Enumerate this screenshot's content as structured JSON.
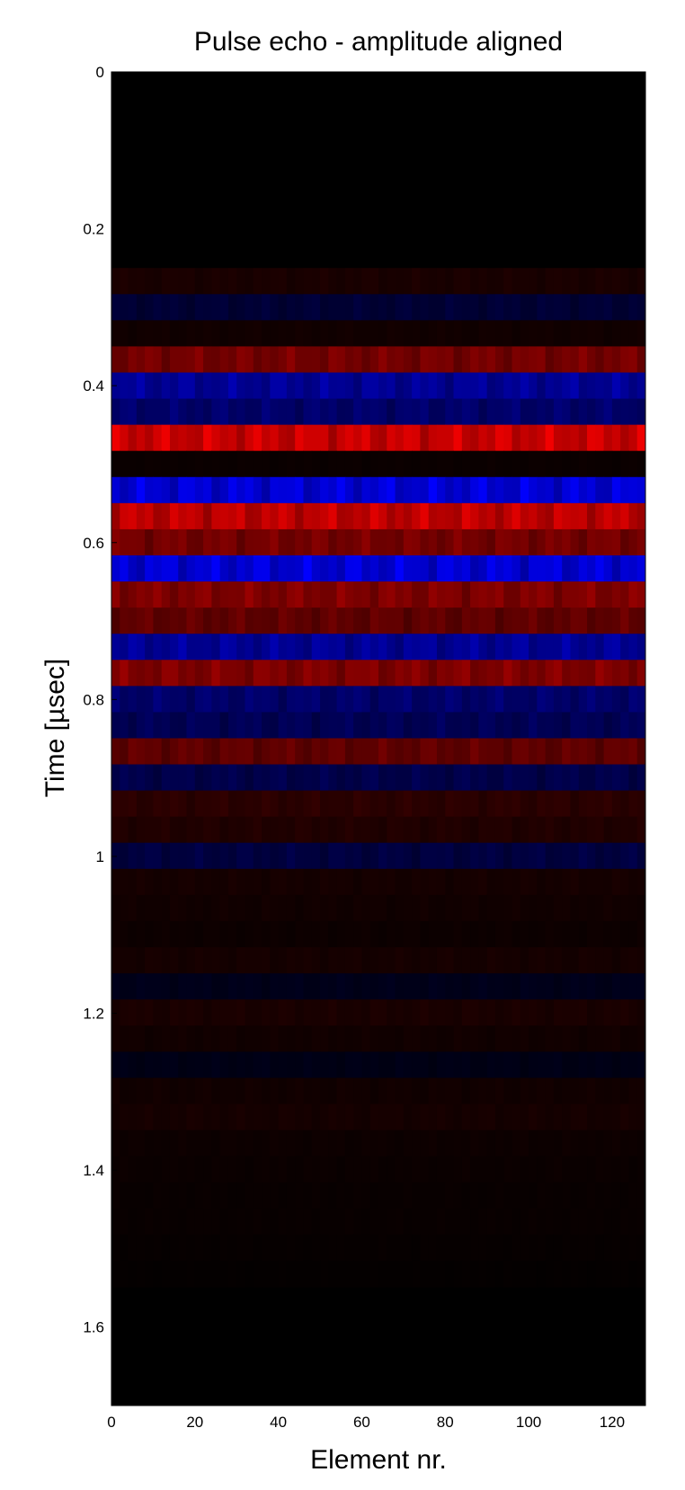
{
  "chart_data": {
    "type": "heatmap",
    "title": "Pulse echo - amplitude aligned",
    "xlabel": "Element nr.",
    "ylabel": "Time [µsec]",
    "x_range": [
      0,
      128
    ],
    "y_range": [
      0,
      1.7
    ],
    "y_reversed": true,
    "grid": false,
    "colormap": "blue (negative) - black (zero) - red (positive)",
    "colors": {
      "positive": "#ff0000",
      "zero": "#000000",
      "negative": "#0000ff"
    },
    "x_ticks": [
      {
        "value": 0,
        "label": "0"
      },
      {
        "value": 20,
        "label": "20"
      },
      {
        "value": 40,
        "label": "40"
      },
      {
        "value": 60,
        "label": "60"
      },
      {
        "value": 80,
        "label": "80"
      },
      {
        "value": 100,
        "label": "100"
      },
      {
        "value": 120,
        "label": "120"
      }
    ],
    "y_ticks": [
      {
        "value": 0,
        "label": "0"
      },
      {
        "value": 0.2,
        "label": "0.2"
      },
      {
        "value": 0.4,
        "label": "0.4"
      },
      {
        "value": 0.6,
        "label": "0.6"
      },
      {
        "value": 0.8,
        "label": "0.8"
      },
      {
        "value": 1.0,
        "label": "1"
      },
      {
        "value": 1.2,
        "label": "1.2"
      },
      {
        "value": 1.4,
        "label": "1.4"
      },
      {
        "value": 1.6,
        "label": "1.6"
      }
    ],
    "time_bins": {
      "start": 0.25,
      "step": 0.0333,
      "amplitudes": [
        0.12,
        -0.25,
        0.08,
        0.55,
        -0.7,
        -0.5,
        0.95,
        0.05,
        -1.0,
        0.9,
        0.55,
        -1.0,
        0.6,
        0.45,
        -0.7,
        0.6,
        -0.5,
        -0.4,
        0.45,
        -0.35,
        0.2,
        0.15,
        -0.3,
        0.1,
        0.08,
        0.06,
        0.1,
        -0.12,
        0.12,
        0.08,
        -0.1,
        0.08,
        0.1,
        0.06,
        0.05,
        0.04,
        0.04,
        0.03,
        0.02
      ]
    }
  }
}
